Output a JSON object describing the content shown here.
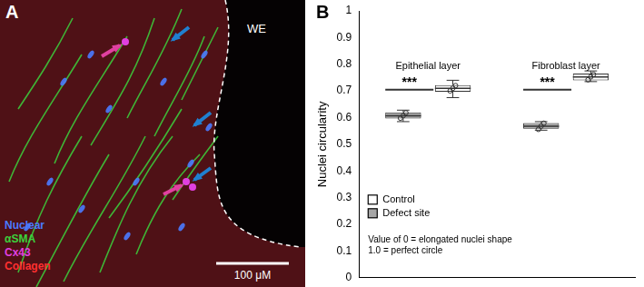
{
  "panel_a": {
    "panel_label": "A",
    "region_label": "WE",
    "scale_bar": "100 μM",
    "channels": [
      {
        "name": "Nuclear",
        "color": "#4a7bff"
      },
      {
        "name": "αSMA",
        "color": "#3cd13c"
      },
      {
        "name": "Cx43",
        "color": "#e040e0"
      },
      {
        "name": "Collagen",
        "color": "#ff3030"
      }
    ]
  },
  "chart_data": {
    "type": "box",
    "panel_label": "B",
    "y_label": "Nuclei circularity",
    "categories": [
      "Epithelial layer",
      "Fibroblast layer"
    ],
    "series": [
      {
        "name": "Defect site",
        "color": "#a6a6a6",
        "boxes": [
          {
            "min": 0.585,
            "q1": 0.597,
            "median": 0.607,
            "q3": 0.62,
            "max": 0.628,
            "points": [
              0.598,
              0.607,
              0.618
            ]
          },
          {
            "min": 0.553,
            "q1": 0.558,
            "median": 0.568,
            "q3": 0.58,
            "max": 0.585,
            "points": [
              0.556,
              0.568,
              0.579
            ]
          }
        ]
      },
      {
        "name": "Control",
        "color": "#ffffff",
        "boxes": [
          {
            "min": 0.675,
            "q1": 0.697,
            "median": 0.71,
            "q3": 0.722,
            "max": 0.74,
            "points": [
              0.7,
              0.71,
              0.72
            ]
          },
          {
            "min": 0.735,
            "q1": 0.74,
            "median": 0.752,
            "q3": 0.765,
            "max": 0.775,
            "points": [
              0.742,
              0.753,
              0.762
            ]
          }
        ]
      }
    ],
    "significance": [
      {
        "label": "***",
        "y": 0.705
      },
      {
        "label": "***",
        "y": 0.705
      }
    ],
    "annotations": [
      "Value of 0 = elongated nuclei shape",
      "1.0 = perfect circle"
    ],
    "ylim": [
      0,
      1
    ],
    "yticks": [
      0,
      0.1,
      0.2,
      0.3,
      0.4,
      0.5,
      0.6,
      0.7,
      0.8,
      0.9,
      1
    ],
    "grid": false,
    "tick_labels": "y"
  }
}
